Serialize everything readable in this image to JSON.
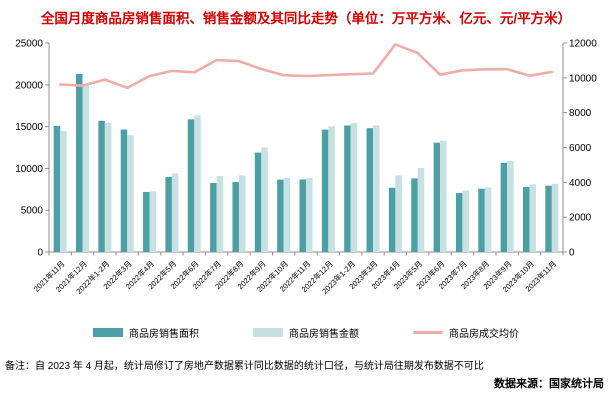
{
  "title": "全国月度商品房销售面积、销售金额及其同比走势（单位：万平方米、亿元、元/平方米）",
  "colors": {
    "title_red": "#d40000",
    "bar_area": "#4C9FA5",
    "bar_amount": "#C7E1E2",
    "price_line": "#F0ACA6",
    "axis_gray": "#909090",
    "label_black": "#000000"
  },
  "chart_data": {
    "type": "bar",
    "subtype": "grouped bars with overlay line",
    "grid": false,
    "legend_position": "bottom",
    "categories": [
      "2021年11月",
      "2021年12月",
      "2022年1-2月",
      "2022年3月",
      "2022年4月",
      "2022年5月",
      "2022年6月",
      "2022年7月",
      "2022年8月",
      "2022年9月",
      "2022年10月",
      "2022年11月",
      "2022年12月",
      "2023年1-2月",
      "2023年3月",
      "2023年4月",
      "2023年5月",
      "2023年6月",
      "2023年7月",
      "2023年8月",
      "2023年9月",
      "2023年10月",
      "2023年11月"
    ],
    "left_axis": {
      "min": 0,
      "max": 25000,
      "step": 5000,
      "ticks": [
        0,
        5000,
        10000,
        15000,
        20000,
        25000
      ]
    },
    "right_axis": {
      "min": 0,
      "max": 12000,
      "step": 2000,
      "ticks": [
        0,
        2000,
        4000,
        6000,
        8000,
        10000,
        12000
      ]
    },
    "series": [
      {
        "name": "商品房销售面积",
        "kind": "bar",
        "axis": "left",
        "unit": "万平方米",
        "color": "#4C9FA5",
        "values": [
          15090,
          21300,
          15700,
          14650,
          7180,
          8970,
          15870,
          8250,
          8370,
          11890,
          8660,
          8680,
          14640,
          15130,
          14810,
          7690,
          8800,
          13080,
          7050,
          7570,
          10670,
          7770,
          7930
        ]
      },
      {
        "name": "商品房销售金额",
        "kind": "bar",
        "axis": "left",
        "unit": "亿元",
        "color": "#C7E1E2",
        "values": [
          14480,
          19900,
          15460,
          13960,
          7250,
          9380,
          16350,
          9090,
          9170,
          12490,
          8850,
          8860,
          15030,
          15450,
          15140,
          9160,
          10040,
          13310,
          7360,
          7710,
          10910,
          8090,
          8160
        ]
      },
      {
        "name": "商品房成交均价",
        "kind": "line",
        "axis": "right",
        "unit": "元/平方米",
        "color": "#F0ACA6",
        "values": [
          9620,
          9550,
          9900,
          9430,
          10100,
          10400,
          10320,
          11020,
          10960,
          10510,
          10150,
          10100,
          10150,
          10210,
          10250,
          11920,
          11420,
          10180,
          10430,
          10490,
          10500,
          10120,
          10340
        ]
      }
    ]
  },
  "footer": {
    "note": "备注：自 2023 年 4 月起，统计局修订了房地产数据累计同比数据的统计口径，与统计局往期发布数据不可比",
    "source": "数据来源：国家统计局"
  }
}
